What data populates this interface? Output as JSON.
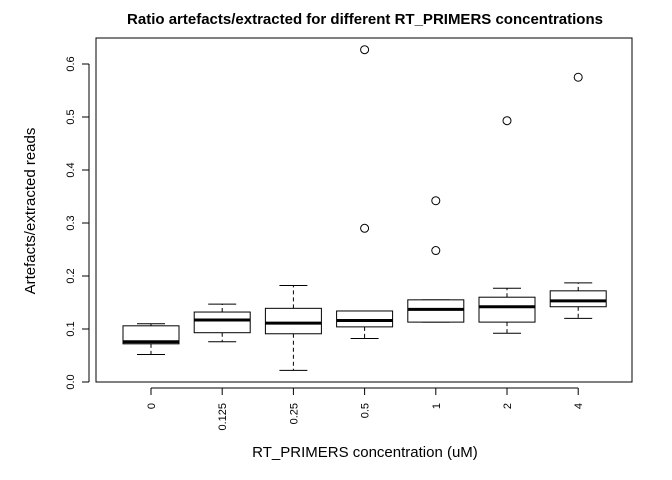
{
  "chart_data": {
    "type": "boxplot",
    "title": "Ratio artefacts/extracted for different RT_PRIMERS concentrations",
    "xlabel": "RT_PRIMERS concentration (uM)",
    "ylabel": "Artefacts/extracted reads",
    "ylim": [
      0,
      0.6
    ],
    "yticks": [
      "0.0",
      "0.1",
      "0.2",
      "0.3",
      "0.4",
      "0.5",
      "0.6"
    ],
    "categories": [
      "0",
      "0.125",
      "0.25",
      "0.5",
      "1",
      "2",
      "4"
    ],
    "boxes": [
      {
        "category": "0",
        "whisker_low": 0.052,
        "q1": 0.072,
        "median": 0.076,
        "q3": 0.106,
        "whisker_high": 0.11,
        "outliers": []
      },
      {
        "category": "0.125",
        "whisker_low": 0.076,
        "q1": 0.093,
        "median": 0.117,
        "q3": 0.132,
        "whisker_high": 0.147,
        "outliers": []
      },
      {
        "category": "0.25",
        "whisker_low": 0.022,
        "q1": 0.091,
        "median": 0.111,
        "q3": 0.139,
        "whisker_high": 0.182,
        "outliers": []
      },
      {
        "category": "0.5",
        "whisker_low": 0.082,
        "q1": 0.104,
        "median": 0.116,
        "q3": 0.134,
        "whisker_high": 0.134,
        "outliers": [
          0.29,
          0.627
        ]
      },
      {
        "category": "1",
        "whisker_low": 0.113,
        "q1": 0.113,
        "median": 0.137,
        "q3": 0.155,
        "whisker_high": 0.155,
        "outliers": [
          0.248,
          0.342
        ]
      },
      {
        "category": "2",
        "whisker_low": 0.092,
        "q1": 0.113,
        "median": 0.142,
        "q3": 0.16,
        "whisker_high": 0.177,
        "outliers": [
          0.493
        ]
      },
      {
        "category": "4",
        "whisker_low": 0.12,
        "q1": 0.142,
        "median": 0.153,
        "q3": 0.172,
        "whisker_high": 0.187,
        "outliers": [
          0.575
        ]
      }
    ],
    "grid": false,
    "legend": "none"
  }
}
